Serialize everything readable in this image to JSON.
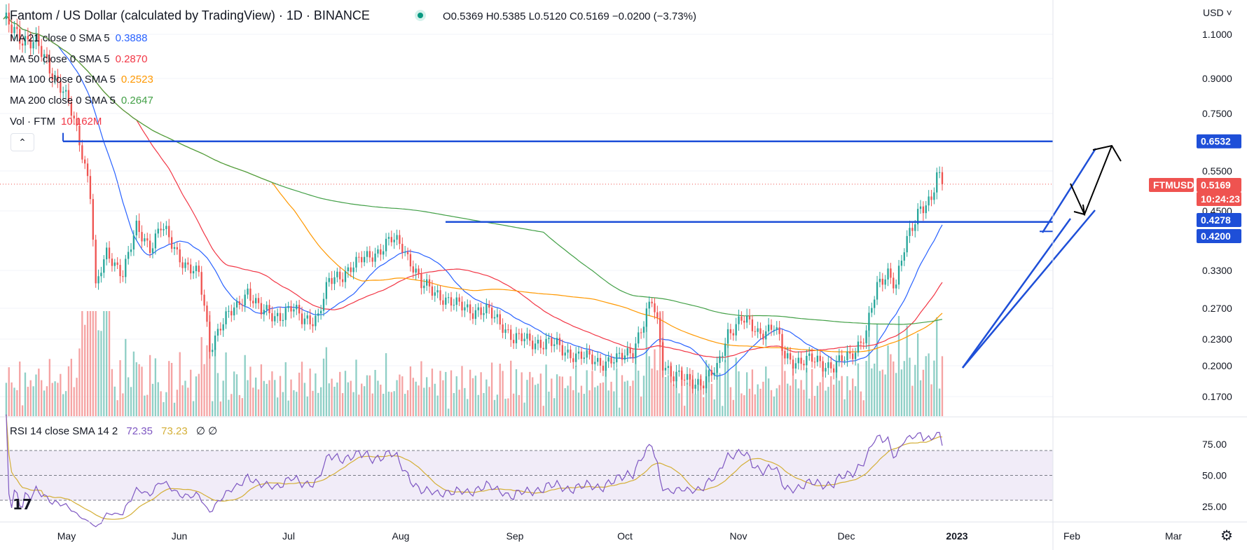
{
  "header": {
    "title": "Fantom / US Dollar (calculated by TradingView) · 1D · BINANCE",
    "ohlc": "O0.5369  H0.5385  L0.5120  C0.5169  −0.0200 (−3.73%)",
    "currency": "USD",
    "collapse_icon": "chevron-up-icon"
  },
  "indicators": [
    {
      "label": "MA 21 close 0 SMA 5",
      "value": "0.3888",
      "color": "#2962ff"
    },
    {
      "label": "MA 50 close 0 SMA 5",
      "value": "0.2870",
      "color": "#f23645"
    },
    {
      "label": "MA 100 close 0 SMA 5",
      "value": "0.2523",
      "color": "#ff9800"
    },
    {
      "label": "MA 200 close 0 SMA 5",
      "value": "0.2647",
      "color": "#43a047"
    },
    {
      "label": "Vol · FTM",
      "value": "10.162M",
      "color": "#f23645"
    }
  ],
  "rsi": {
    "label": "RSI 14 close SMA 14 2",
    "value1": "72.35",
    "value2": "73.23",
    "value3": "∅ ∅",
    "color1": "#7e57c2",
    "color2": "#d4af37"
  },
  "colors": {
    "up": "#26a69a",
    "down": "#ef5350",
    "vol_up": "#8fcfc6",
    "vol_down": "#f5a3a3",
    "line_blue": "#1e4fd8"
  },
  "chart_data": {
    "type": "candlestick",
    "symbol": "FTMUSD",
    "x_months": [
      "May",
      "Jun",
      "Jul",
      "Aug",
      "Sep",
      "Oct",
      "Nov",
      "Dec",
      "2023",
      "Feb",
      "Mar"
    ],
    "price_ticks": [
      "1.1000",
      "0.9000",
      "0.7500",
      "0.5500",
      "0.4500",
      "0.3300",
      "0.2700",
      "0.2300",
      "0.2000",
      "0.1700"
    ],
    "price_labels": [
      {
        "text": "0.6532",
        "kind": "level"
      },
      {
        "text": "FTMUSD",
        "kind": "symbol"
      },
      {
        "text": "0.5169",
        "kind": "last"
      },
      {
        "text": "10:24:23",
        "kind": "timer"
      },
      {
        "text": "0.4278",
        "kind": "level"
      },
      {
        "text": "0.4200",
        "kind": "level"
      }
    ],
    "rsi_ticks": [
      "75.00",
      "50.00",
      "25.00"
    ],
    "horizontal_levels": [
      0.6532,
      0.4278,
      0.42
    ],
    "last_price": 0.5169,
    "ma_last": {
      "ma21": 0.3888,
      "ma50": 0.287,
      "ma100": 0.2523,
      "ma200": 0.2647
    },
    "rsi_last": [
      72.35,
      73.23
    ],
    "close_anchors": [
      {
        "t": 0,
        "c": 1.15
      },
      {
        "t": 12,
        "c": 1.05
      },
      {
        "t": 22,
        "c": 0.85
      },
      {
        "t": 28,
        "c": 0.65
      },
      {
        "t": 32,
        "c": 0.5
      },
      {
        "t": 34,
        "c": 0.3
      },
      {
        "t": 38,
        "c": 0.36
      },
      {
        "t": 44,
        "c": 0.33
      },
      {
        "t": 49,
        "c": 0.41
      },
      {
        "t": 54,
        "c": 0.38
      },
      {
        "t": 58,
        "c": 0.42
      },
      {
        "t": 62,
        "c": 0.38
      },
      {
        "t": 66,
        "c": 0.35
      },
      {
        "t": 72,
        "c": 0.32
      },
      {
        "t": 76,
        "c": 0.22
      },
      {
        "t": 80,
        "c": 0.25
      },
      {
        "t": 86,
        "c": 0.27
      },
      {
        "t": 90,
        "c": 0.3
      },
      {
        "t": 95,
        "c": 0.265
      },
      {
        "t": 100,
        "c": 0.26
      },
      {
        "t": 106,
        "c": 0.27
      },
      {
        "t": 110,
        "c": 0.255
      },
      {
        "t": 116,
        "c": 0.26
      },
      {
        "t": 120,
        "c": 0.31
      },
      {
        "t": 126,
        "c": 0.33
      },
      {
        "t": 132,
        "c": 0.35
      },
      {
        "t": 138,
        "c": 0.37
      },
      {
        "t": 143,
        "c": 0.39
      },
      {
        "t": 147,
        "c": 0.38
      },
      {
        "t": 150,
        "c": 0.35
      },
      {
        "t": 154,
        "c": 0.305
      },
      {
        "t": 160,
        "c": 0.295
      },
      {
        "t": 166,
        "c": 0.275
      },
      {
        "t": 172,
        "c": 0.27
      },
      {
        "t": 178,
        "c": 0.265
      },
      {
        "t": 184,
        "c": 0.25
      },
      {
        "t": 188,
        "c": 0.23
      },
      {
        "t": 196,
        "c": 0.228
      },
      {
        "t": 204,
        "c": 0.222
      },
      {
        "t": 212,
        "c": 0.21
      },
      {
        "t": 220,
        "c": 0.205
      },
      {
        "t": 226,
        "c": 0.205
      },
      {
        "t": 232,
        "c": 0.22
      },
      {
        "t": 236,
        "c": 0.25
      },
      {
        "t": 239,
        "c": 0.28
      },
      {
        "t": 241,
        "c": 0.25
      },
      {
        "t": 243,
        "c": 0.205
      },
      {
        "t": 247,
        "c": 0.19
      },
      {
        "t": 252,
        "c": 0.185
      },
      {
        "t": 258,
        "c": 0.185
      },
      {
        "t": 263,
        "c": 0.195
      },
      {
        "t": 267,
        "c": 0.24
      },
      {
        "t": 272,
        "c": 0.255
      },
      {
        "t": 278,
        "c": 0.24
      },
      {
        "t": 284,
        "c": 0.245
      },
      {
        "t": 288,
        "c": 0.21
      },
      {
        "t": 294,
        "c": 0.205
      },
      {
        "t": 300,
        "c": 0.205
      },
      {
        "t": 306,
        "c": 0.2
      },
      {
        "t": 312,
        "c": 0.21
      },
      {
        "t": 318,
        "c": 0.24
      },
      {
        "t": 322,
        "c": 0.3
      },
      {
        "t": 326,
        "c": 0.33
      },
      {
        "t": 329,
        "c": 0.31
      },
      {
        "t": 332,
        "c": 0.37
      },
      {
        "t": 336,
        "c": 0.43
      },
      {
        "t": 338,
        "c": 0.465
      },
      {
        "t": 342,
        "c": 0.48
      },
      {
        "t": 344,
        "c": 0.53
      },
      {
        "t": 346,
        "c": 0.5169
      }
    ]
  }
}
